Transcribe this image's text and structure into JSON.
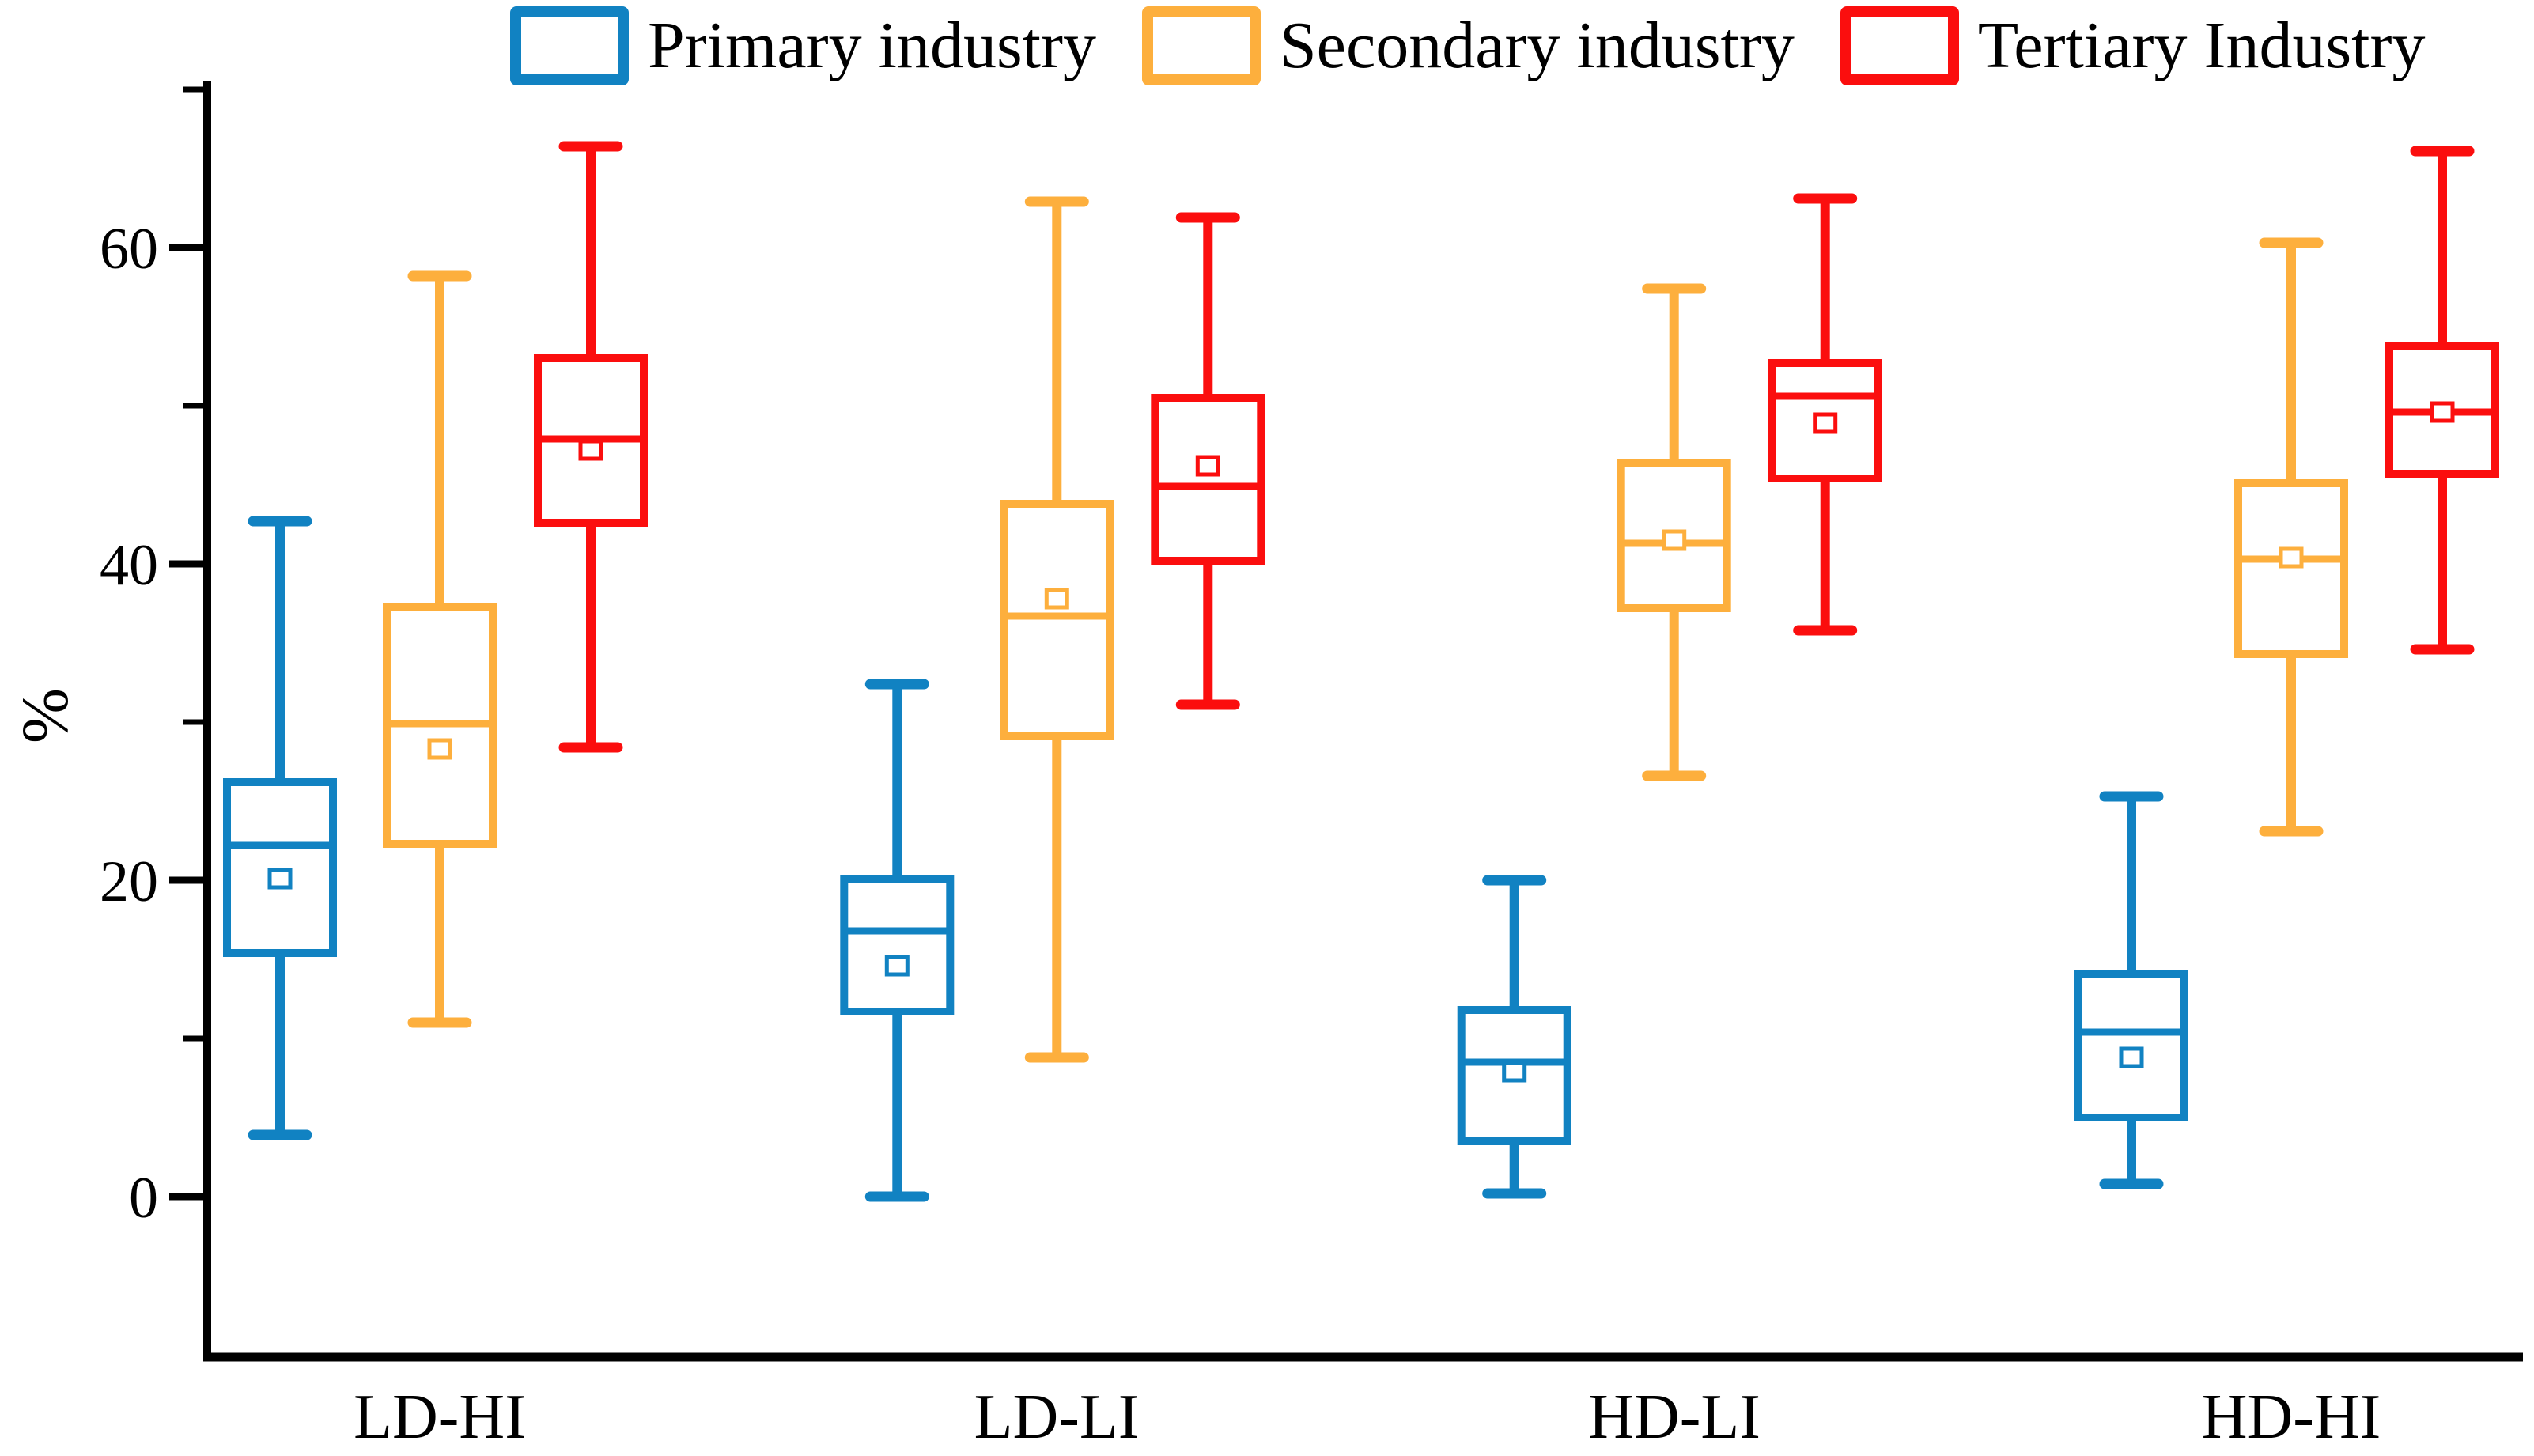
{
  "chart_data": {
    "type": "boxplot",
    "title": "",
    "ylabel": "%",
    "xlabel": "",
    "ylim": [
      -10,
      70.5
    ],
    "yticks_major": [
      0,
      20,
      40,
      60
    ],
    "yticks_minor": [
      10,
      30,
      50,
      70
    ],
    "grid": false,
    "legend_position": "top",
    "categories": [
      "LD-HI",
      "LD-LI",
      "HD-LI",
      "HD-HI"
    ],
    "series": [
      {
        "name": "Primary industry",
        "color": "#1182C2",
        "boxes": [
          {
            "whisker_low": 3.9,
            "q1": 15.4,
            "median": 22.2,
            "q3": 26.2,
            "whisker_high": 42.7,
            "mean": 20.1
          },
          {
            "whisker_low": 0.0,
            "q1": 11.7,
            "median": 16.8,
            "q3": 20.1,
            "whisker_high": 32.4,
            "mean": 14.6
          },
          {
            "whisker_low": 0.2,
            "q1": 3.5,
            "median": 8.5,
            "q3": 11.8,
            "whisker_high": 20.0,
            "mean": 7.9
          },
          {
            "whisker_low": 0.8,
            "q1": 5.0,
            "median": 10.4,
            "q3": 14.1,
            "whisker_high": 25.3,
            "mean": 8.8
          }
        ]
      },
      {
        "name": "Secondary industry",
        "color": "#FDAF3D",
        "boxes": [
          {
            "whisker_low": 11.0,
            "q1": 22.3,
            "median": 29.9,
            "q3": 37.3,
            "whisker_high": 58.2,
            "mean": 28.3
          },
          {
            "whisker_low": 8.8,
            "q1": 29.1,
            "median": 36.7,
            "q3": 43.8,
            "whisker_high": 62.9,
            "mean": 37.8
          },
          {
            "whisker_low": 26.6,
            "q1": 37.2,
            "median": 41.3,
            "q3": 46.4,
            "whisker_high": 57.4,
            "mean": 41.5
          },
          {
            "whisker_low": 23.1,
            "q1": 34.3,
            "median": 40.3,
            "q3": 45.1,
            "whisker_high": 60.3,
            "mean": 40.4
          }
        ]
      },
      {
        "name": "Tertiary Industry",
        "color": "#FB0E0E",
        "boxes": [
          {
            "whisker_low": 28.4,
            "q1": 42.6,
            "median": 47.9,
            "q3": 53.0,
            "whisker_high": 66.4,
            "mean": 47.2
          },
          {
            "whisker_low": 31.1,
            "q1": 40.2,
            "median": 44.9,
            "q3": 50.5,
            "whisker_high": 61.9,
            "mean": 46.2
          },
          {
            "whisker_low": 35.8,
            "q1": 45.4,
            "median": 50.6,
            "q3": 52.7,
            "whisker_high": 63.1,
            "mean": 48.9
          },
          {
            "whisker_low": 34.6,
            "q1": 45.7,
            "median": 49.6,
            "q3": 53.8,
            "whisker_high": 66.1,
            "mean": 49.6
          }
        ]
      }
    ]
  }
}
